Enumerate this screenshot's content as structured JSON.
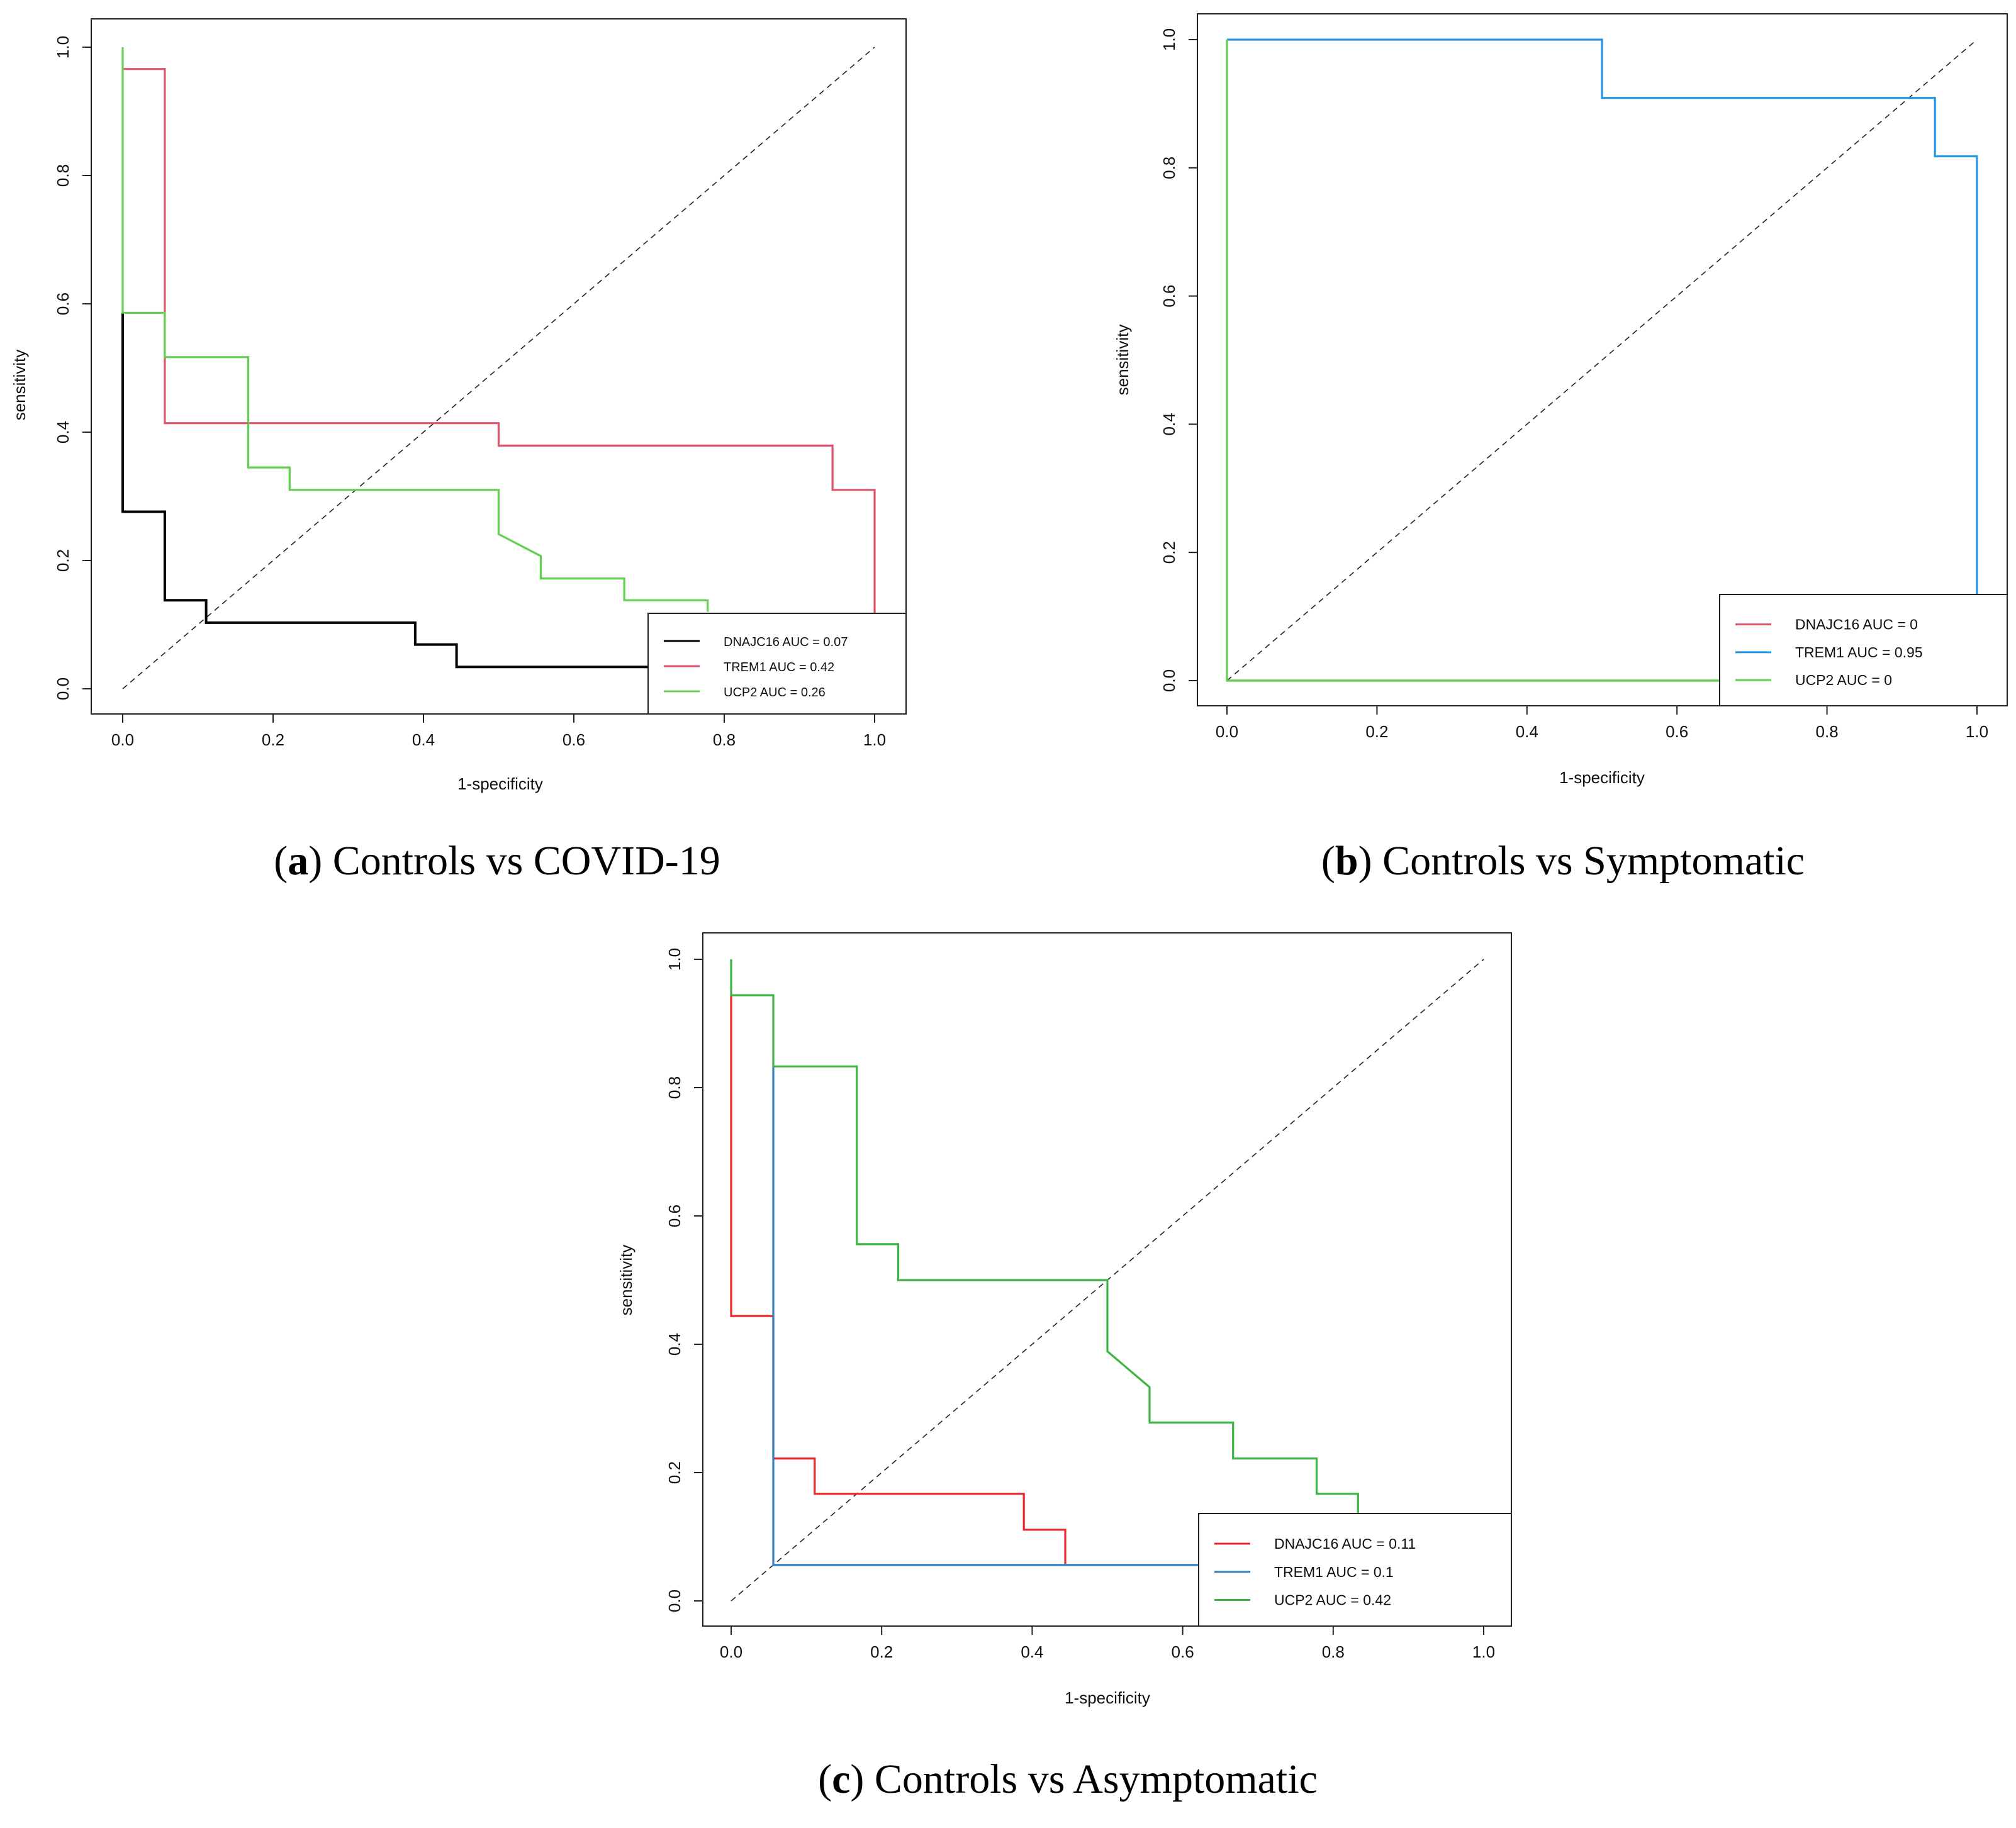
{
  "chart_data": [
    {
      "id": "a",
      "type": "line",
      "subplot_label": "a",
      "caption": "Controls vs COVID-19",
      "xlabel": "1-specificity",
      "ylabel": "sensitivity",
      "xlim": [
        0,
        1
      ],
      "ylim": [
        0,
        1
      ],
      "xticks": [
        "0.0",
        "0.2",
        "0.4",
        "0.6",
        "0.8",
        "1.0"
      ],
      "yticks": [
        "0.0",
        "0.2",
        "0.4",
        "0.6",
        "0.8",
        "1.0"
      ],
      "diagonal": true,
      "legend_position": "bottom-right",
      "series": [
        {
          "name": "DNAJC16",
          "label": "DNAJC16 AUC = 0.07",
          "color": "#000000",
          "points": [
            [
              0,
              0.586
            ],
            [
              0,
              0.276
            ],
            [
              0.056,
              0.276
            ],
            [
              0.056,
              0.138
            ],
            [
              0.111,
              0.138
            ],
            [
              0.111,
              0.103
            ],
            [
              0.389,
              0.103
            ],
            [
              0.389,
              0.069
            ],
            [
              0.444,
              0.069
            ],
            [
              0.444,
              0.034
            ],
            [
              0.8,
              0.034
            ]
          ]
        },
        {
          "name": "TREM1",
          "label": "TREM1 AUC = 0.42",
          "color": "#df536b",
          "points": [
            [
              0,
              0.966
            ],
            [
              0.056,
              0.966
            ],
            [
              0.056,
              0.414
            ],
            [
              0.5,
              0.414
            ],
            [
              0.5,
              0.379
            ],
            [
              0.944,
              0.379
            ],
            [
              0.944,
              0.31
            ],
            [
              1.0,
              0.31
            ],
            [
              1.0,
              0.1
            ]
          ]
        },
        {
          "name": "UCP2",
          "label": "UCP2 AUC = 0.26",
          "color": "#61d04f",
          "points": [
            [
              0,
              1.0
            ],
            [
              0,
              0.586
            ],
            [
              0.056,
              0.586
            ],
            [
              0.056,
              0.517
            ],
            [
              0.167,
              0.517
            ],
            [
              0.167,
              0.345
            ],
            [
              0.222,
              0.345
            ],
            [
              0.222,
              0.31
            ],
            [
              0.5,
              0.31
            ],
            [
              0.5,
              0.241
            ],
            [
              0.556,
              0.207
            ],
            [
              0.556,
              0.172
            ],
            [
              0.667,
              0.172
            ],
            [
              0.667,
              0.138
            ],
            [
              0.778,
              0.138
            ],
            [
              0.778,
              0.12
            ]
          ]
        }
      ]
    },
    {
      "id": "b",
      "type": "line",
      "subplot_label": "b",
      "caption": "Controls vs Symptomatic",
      "xlabel": "1-specificity",
      "ylabel": "sensitivity",
      "xlim": [
        0,
        1
      ],
      "ylim": [
        0,
        1
      ],
      "xticks": [
        "0.0",
        "0.2",
        "0.4",
        "0.6",
        "0.8",
        "1.0"
      ],
      "yticks": [
        "0.0",
        "0.2",
        "0.4",
        "0.6",
        "0.8",
        "1.0"
      ],
      "diagonal": true,
      "legend_position": "bottom-right",
      "series": [
        {
          "name": "DNAJC16",
          "label": "DNAJC16 AUC = 0",
          "color": "#df536b",
          "points": [
            [
              0,
              0
            ],
            [
              0.66,
              0
            ]
          ]
        },
        {
          "name": "TREM1",
          "label": "TREM1 AUC = 0.95",
          "color": "#2297e6",
          "points": [
            [
              0,
              1.0
            ],
            [
              0.5,
              1.0
            ],
            [
              0.5,
              0.909
            ],
            [
              0.944,
              0.909
            ],
            [
              0.944,
              0.818
            ],
            [
              1.0,
              0.818
            ],
            [
              1.0,
              0.13
            ]
          ]
        },
        {
          "name": "UCP2",
          "label": "UCP2 AUC = 0",
          "color": "#61d04f",
          "points": [
            [
              0,
              0
            ],
            [
              0,
              1.0
            ],
            [
              0,
              0
            ],
            [
              0.66,
              0
            ]
          ]
        }
      ]
    },
    {
      "id": "c",
      "type": "line",
      "subplot_label": "c",
      "caption": "Controls vs Asymptomatic",
      "xlabel": "1-specificity",
      "ylabel": "sensitivity",
      "xlim": [
        0,
        1
      ],
      "ylim": [
        0,
        1
      ],
      "xticks": [
        "0.0",
        "0.2",
        "0.4",
        "0.6",
        "0.8",
        "1.0"
      ],
      "yticks": [
        "0.0",
        "0.2",
        "0.4",
        "0.6",
        "0.8",
        "1.0"
      ],
      "diagonal": true,
      "legend_position": "bottom-right",
      "series": [
        {
          "name": "DNAJC16",
          "label": "DNAJC16 AUC = 0.11",
          "color": "#e8282b",
          "points": [
            [
              0,
              0.944
            ],
            [
              0,
              0.444
            ],
            [
              0.056,
              0.444
            ],
            [
              0.056,
              0.222
            ],
            [
              0.111,
              0.222
            ],
            [
              0.111,
              0.167
            ],
            [
              0.389,
              0.167
            ],
            [
              0.389,
              0.111
            ],
            [
              0.444,
              0.111
            ],
            [
              0.444,
              0.056
            ]
          ]
        },
        {
          "name": "TREM1",
          "label": "TREM1 AUC = 0.1",
          "color": "#2f7fc1",
          "points": [
            [
              0.056,
              0.833
            ],
            [
              0.056,
              0.056
            ],
            [
              0.63,
              0.056
            ]
          ]
        },
        {
          "name": "UCP2",
          "label": "UCP2 AUC = 0.42",
          "color": "#3cb441",
          "points": [
            [
              0,
              1.0
            ],
            [
              0,
              0.944
            ],
            [
              0.056,
              0.944
            ],
            [
              0.056,
              0.833
            ],
            [
              0.167,
              0.833
            ],
            [
              0.167,
              0.556
            ],
            [
              0.222,
              0.556
            ],
            [
              0.222,
              0.5
            ],
            [
              0.5,
              0.5
            ],
            [
              0.5,
              0.389
            ],
            [
              0.556,
              0.333
            ],
            [
              0.556,
              0.278
            ],
            [
              0.667,
              0.278
            ],
            [
              0.667,
              0.222
            ],
            [
              0.778,
              0.222
            ],
            [
              0.778,
              0.167
            ],
            [
              0.833,
              0.167
            ],
            [
              0.833,
              0.13
            ]
          ]
        }
      ]
    }
  ]
}
